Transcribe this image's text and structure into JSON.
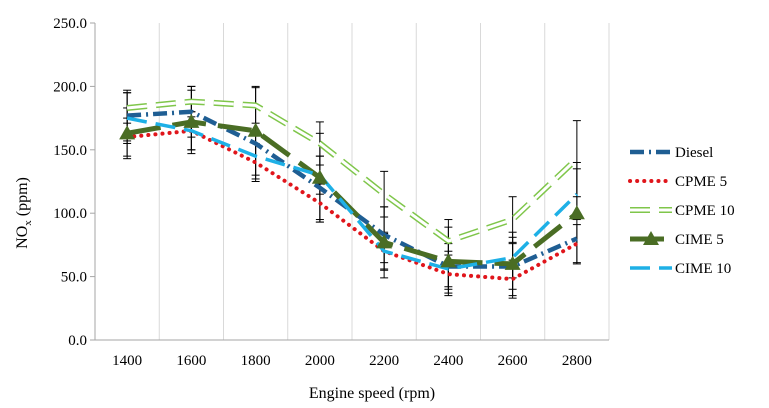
{
  "chart_data": {
    "type": "line",
    "title": "",
    "xlabel": "Engine speed (rpm)",
    "ylabel_main": "NO",
    "ylabel_sub": "x",
    "ylabel_tail": " (ppm)",
    "categories": [
      "1400",
      "1600",
      "1800",
      "2000",
      "2200",
      "2400",
      "2600",
      "2800"
    ],
    "ylim": [
      0,
      250
    ],
    "yticks": [
      "0.0",
      "50.0",
      "100.0",
      "150.0",
      "200.0",
      "250.0"
    ],
    "grid": "vertical",
    "legend_position": "right",
    "series": [
      {
        "name": "Diesel",
        "style": "dash-dot",
        "color": "#1f5e93",
        "values": [
          177,
          180,
          155,
          120,
          83,
          58,
          58,
          80
        ],
        "error": [
          20,
          20,
          0,
          25,
          22,
          18,
          18,
          0
        ]
      },
      {
        "name": "CPME 5",
        "style": "dotted",
        "color": "#e0151b",
        "values": [
          160,
          165,
          140,
          108,
          70,
          52,
          48,
          76
        ],
        "error": [
          15,
          15,
          15,
          15,
          15,
          15,
          15,
          15
        ]
      },
      {
        "name": "CPME 10",
        "style": "dashed-hollow",
        "color": "#7fc64a",
        "values": [
          183,
          188,
          185,
          155,
          115,
          78,
          95,
          143
        ],
        "error": [
          12,
          12,
          14,
          17,
          18,
          17,
          18,
          30
        ]
      },
      {
        "name": "CIME 5",
        "style": "solid-triangle",
        "color": "#4a6d24",
        "values": [
          163,
          172,
          165,
          128,
          77,
          62,
          60,
          100
        ],
        "error": [
          20,
          25,
          35,
          35,
          28,
          27,
          25,
          40
        ]
      },
      {
        "name": "CIME 10",
        "style": "long-dash",
        "color": "#1eb0e6",
        "values": [
          175,
          165,
          145,
          130,
          70,
          56,
          65,
          115
        ],
        "error": [
          20,
          15,
          18,
          15,
          14,
          14,
          16,
          20
        ]
      }
    ]
  }
}
